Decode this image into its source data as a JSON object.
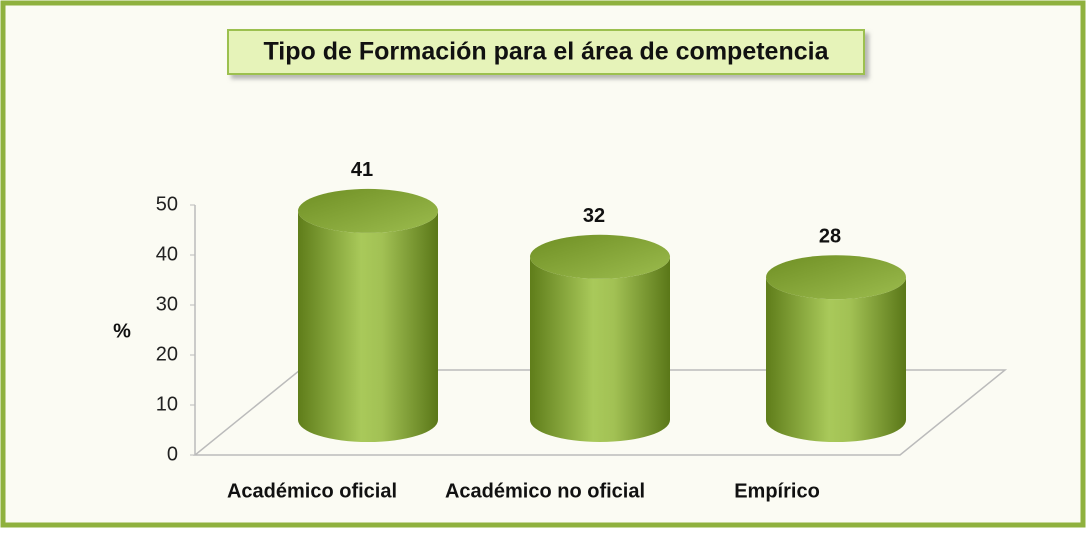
{
  "chart_data": {
    "type": "bar",
    "title": "Tipo de Formación para el área de competencia",
    "y_label": "%",
    "categories": [
      "Académico oficial",
      "Académico no oficial",
      "Empírico"
    ],
    "values": [
      41,
      32,
      28
    ],
    "color": "#8fb13e",
    "ylim": [
      0,
      50
    ],
    "yticks": [
      0,
      10,
      20,
      30,
      40,
      50
    ]
  }
}
